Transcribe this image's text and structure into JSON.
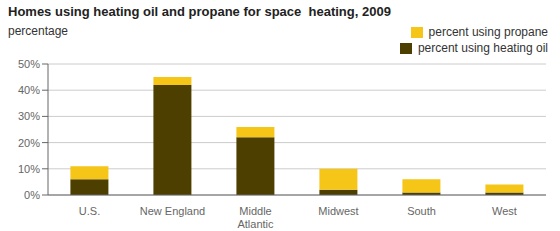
{
  "chart_data": {
    "type": "bar",
    "title": "Homes using heating oil and propane for space  heating, 2009",
    "ylabel": "percentage",
    "categories": [
      "U.S.",
      "New England",
      "Middle\nAtlantic",
      "Midwest",
      "South",
      "West"
    ],
    "series": [
      {
        "name": "percent using heating oil",
        "color": "#4d3f00",
        "values": [
          6,
          42,
          22,
          2,
          1,
          1
        ]
      },
      {
        "name": "percent using propane",
        "color": "#f5c518",
        "values": [
          5,
          3,
          4,
          8,
          5,
          3
        ]
      }
    ],
    "stacked": true,
    "ylim": [
      0,
      50
    ],
    "yticks": [
      {
        "value": 0,
        "label": "0%"
      },
      {
        "value": 10,
        "label": "10%"
      },
      {
        "value": 20,
        "label": "20%"
      },
      {
        "value": 30,
        "label": "30%"
      },
      {
        "value": 40,
        "label": "40%"
      },
      {
        "value": 50,
        "label": "50%"
      }
    ],
    "grid": true,
    "legend": "upper right"
  }
}
